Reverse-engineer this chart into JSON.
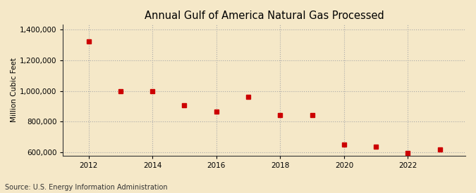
{
  "title": "Annual Gulf of America Natural Gas Processed",
  "ylabel": "Million Cubic Feet",
  "source": "Source: U.S. Energy Information Administration",
  "background_color": "#f5e8c8",
  "years": [
    2012,
    2013,
    2014,
    2015,
    2016,
    2017,
    2018,
    2019,
    2020,
    2021,
    2022,
    2023
  ],
  "values": [
    1320000,
    1000000,
    1000000,
    905000,
    865000,
    960000,
    845000,
    845000,
    650000,
    640000,
    595000,
    620000
  ],
  "marker_color": "#cc0000",
  "marker_size": 4,
  "ylim": [
    580000,
    1430000
  ],
  "yticks": [
    600000,
    800000,
    1000000,
    1200000,
    1400000
  ],
  "xticks": [
    2012,
    2014,
    2016,
    2018,
    2020,
    2022
  ],
  "grid_color": "#aaaaaa",
  "grid_linestyle": ":",
  "grid_linewidth": 0.8,
  "title_fontsize": 10.5,
  "axis_fontsize": 7.5,
  "source_fontsize": 7
}
